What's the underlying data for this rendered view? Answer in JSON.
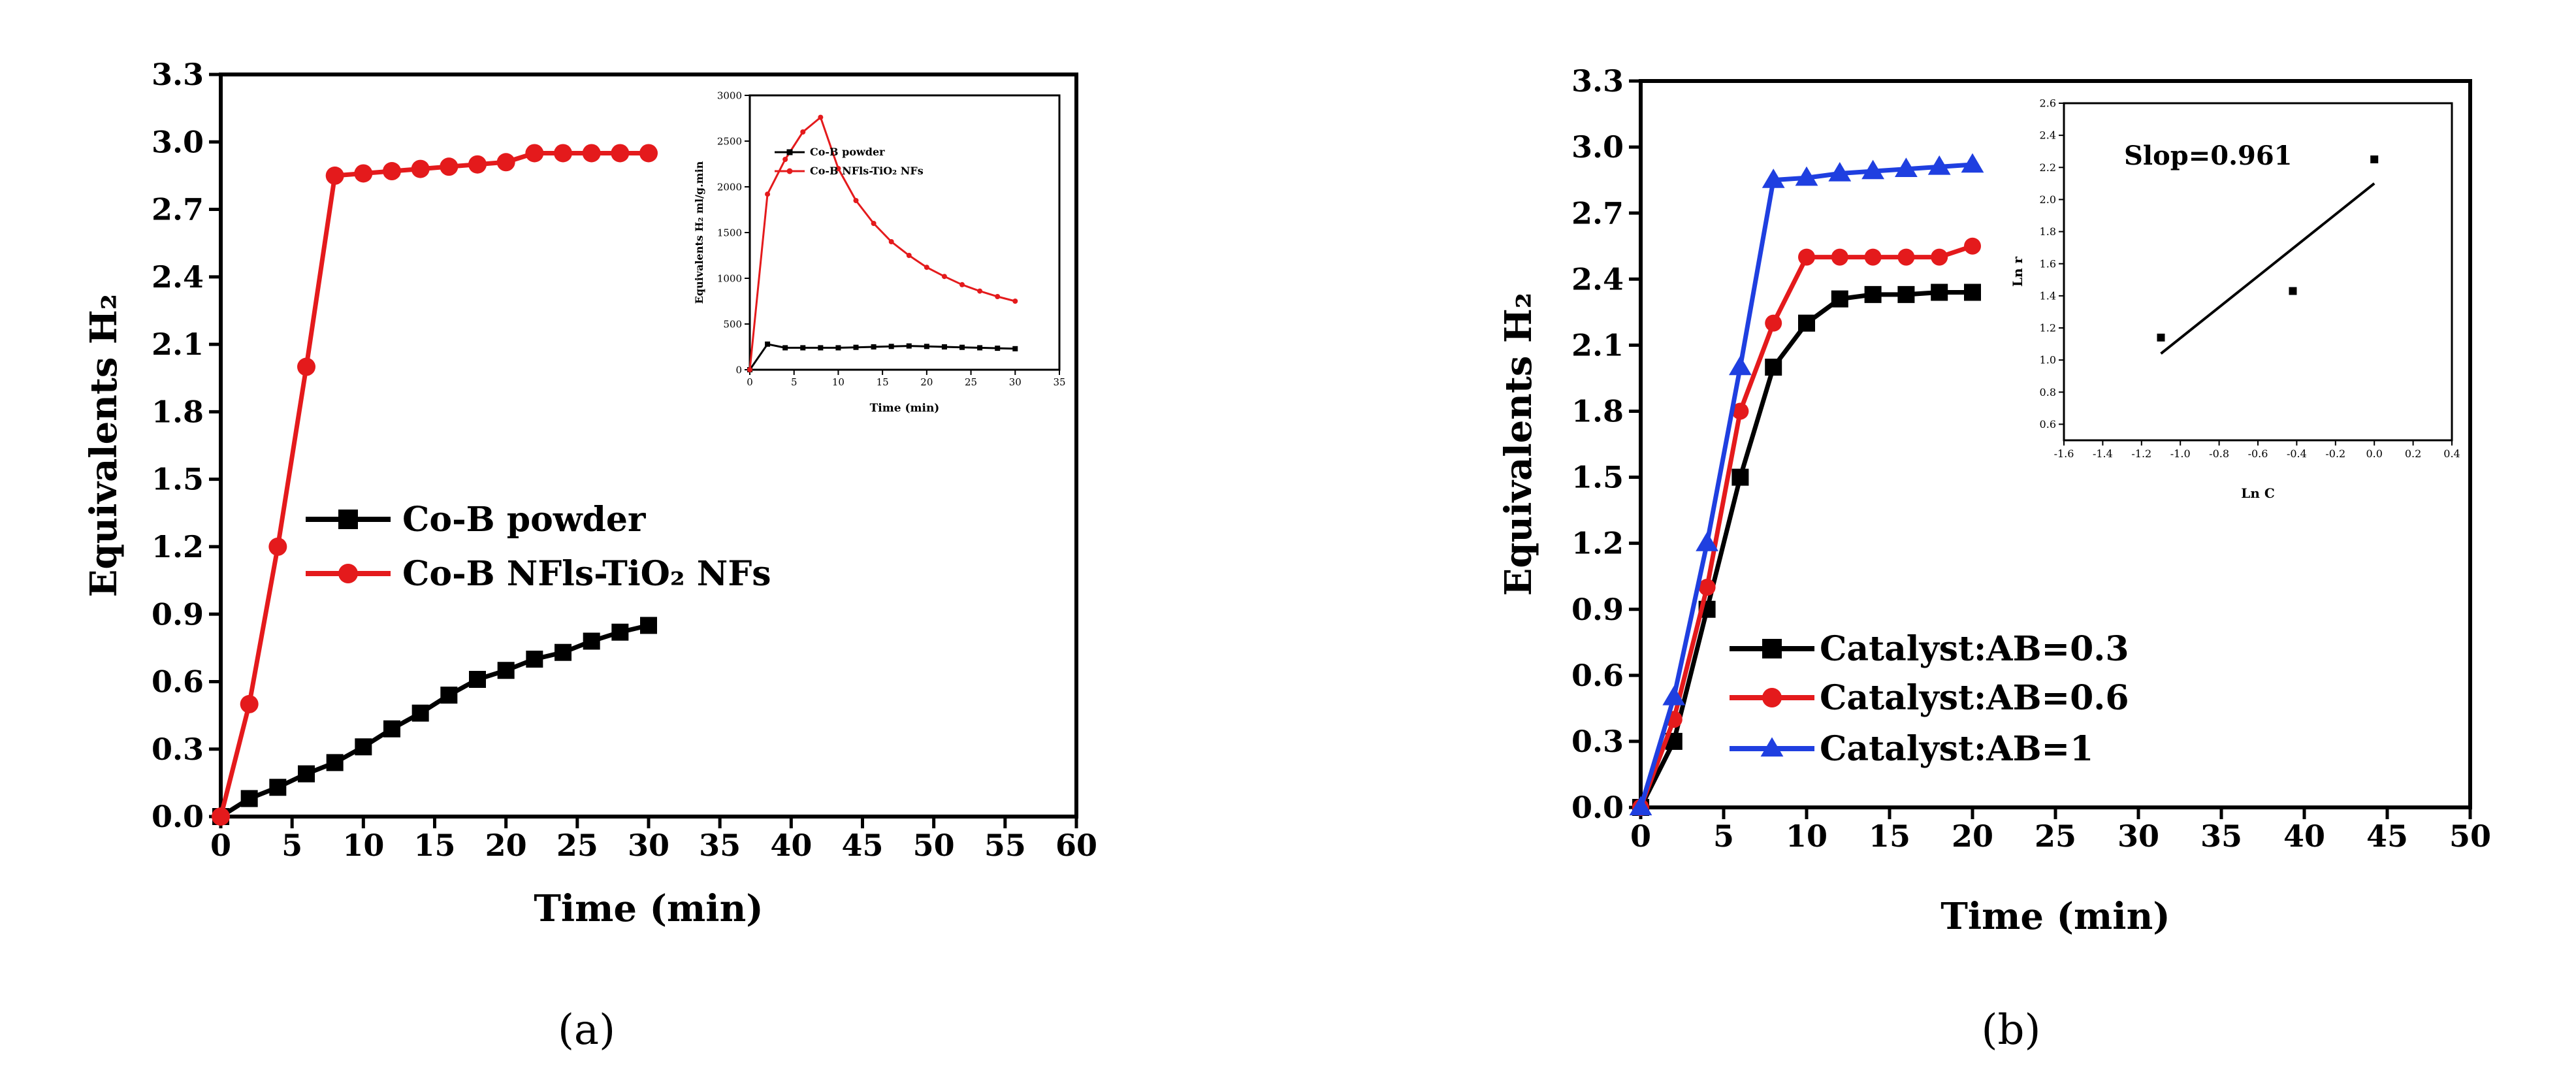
{
  "chart_data": [
    {
      "panel": "(a)",
      "type": "line",
      "xlabel": "Time (min)",
      "ylabel": "Equivalents H₂",
      "xlim": [
        0,
        60
      ],
      "ylim": [
        0,
        3.3
      ],
      "xticks": [
        "0",
        "5",
        "10",
        "15",
        "20",
        "25",
        "30",
        "35",
        "40",
        "45",
        "50",
        "55",
        "60"
      ],
      "yticks": [
        "0.0",
        "0.3",
        "0.6",
        "0.9",
        "1.2",
        "1.5",
        "1.8",
        "2.1",
        "2.4",
        "2.7",
        "3.0",
        "3.3"
      ],
      "legend_position": "center-left",
      "series": [
        {
          "name": "Co-B powder",
          "color": "#000000",
          "marker": "square",
          "x": [
            0,
            2,
            4,
            6,
            8,
            10,
            12,
            14,
            16,
            18,
            20,
            22,
            24,
            26,
            28,
            30
          ],
          "y": [
            0.0,
            0.08,
            0.13,
            0.19,
            0.24,
            0.31,
            0.39,
            0.46,
            0.54,
            0.61,
            0.65,
            0.7,
            0.73,
            0.78,
            0.82,
            0.85
          ]
        },
        {
          "name": "Co-B NFls-TiO₂ NFs",
          "color": "#e41a1c",
          "marker": "circle",
          "x": [
            0,
            2,
            4,
            6,
            8,
            10,
            12,
            14,
            16,
            18,
            20,
            22,
            24,
            26,
            28,
            30
          ],
          "y": [
            0.0,
            0.5,
            1.2,
            2.0,
            2.85,
            2.86,
            2.87,
            2.88,
            2.89,
            2.9,
            2.91,
            2.95,
            2.95,
            2.95,
            2.95,
            2.95
          ]
        }
      ],
      "inset": {
        "type": "line",
        "xlabel": "Time (min)",
        "ylabel": "Equivalents H₂ ml/g.min",
        "xlim": [
          0,
          35
        ],
        "ylim": [
          0,
          3000
        ],
        "xticks": [
          "0",
          "5",
          "10",
          "15",
          "20",
          "25",
          "30",
          "35"
        ],
        "yticks": [
          "0",
          "500",
          "1000",
          "1500",
          "2000",
          "2500",
          "3000"
        ],
        "legend_position": "top-left",
        "series": [
          {
            "name": "Co-B powder",
            "color": "#000000",
            "marker": "square",
            "x": [
              0,
              2,
              4,
              6,
              8,
              10,
              12,
              14,
              16,
              18,
              20,
              22,
              24,
              26,
              28,
              30
            ],
            "y": [
              0,
              280,
              240,
              240,
              240,
              240,
              245,
              250,
              255,
              260,
              255,
              250,
              245,
              240,
              235,
              230
            ]
          },
          {
            "name": "Co-B NFls-TiO₂ NFs",
            "color": "#e41a1c",
            "marker": "dot",
            "x": [
              0,
              2,
              4,
              6,
              8,
              10,
              12,
              14,
              16,
              18,
              20,
              22,
              24,
              26,
              28,
              30
            ],
            "y": [
              0,
              1920,
              2300,
              2600,
              2760,
              2200,
              1850,
              1600,
              1400,
              1250,
              1120,
              1020,
              930,
              860,
              800,
              750
            ]
          }
        ]
      }
    },
    {
      "panel": "(b)",
      "type": "line",
      "xlabel": "Time (min)",
      "ylabel": "Equivalents H₂",
      "xlim": [
        0,
        50
      ],
      "ylim": [
        0,
        3.3
      ],
      "xticks": [
        "0",
        "5",
        "10",
        "15",
        "20",
        "25",
        "30",
        "35",
        "40",
        "45",
        "50"
      ],
      "yticks": [
        "0.0",
        "0.3",
        "0.6",
        "0.9",
        "1.2",
        "1.5",
        "1.8",
        "2.1",
        "2.4",
        "2.7",
        "3.0",
        "3.3"
      ],
      "legend_position": "bottom-center",
      "series": [
        {
          "name": "Catalyst:AB=0.3",
          "color": "#000000",
          "marker": "square",
          "x": [
            0,
            2,
            4,
            6,
            8,
            10,
            12,
            14,
            16,
            18,
            20
          ],
          "y": [
            0.0,
            0.3,
            0.9,
            1.5,
            2.0,
            2.2,
            2.31,
            2.33,
            2.33,
            2.34,
            2.34
          ]
        },
        {
          "name": "Catalyst:AB=0.6",
          "color": "#e41a1c",
          "marker": "circle",
          "x": [
            0,
            2,
            4,
            6,
            8,
            10,
            12,
            14,
            16,
            18,
            20
          ],
          "y": [
            0.0,
            0.4,
            1.0,
            1.8,
            2.2,
            2.5,
            2.5,
            2.5,
            2.5,
            2.5,
            2.55
          ]
        },
        {
          "name": "Catalyst:AB=1",
          "color": "#1f3fe0",
          "marker": "triangle",
          "x": [
            0,
            2,
            4,
            6,
            8,
            10,
            12,
            14,
            16,
            18,
            20
          ],
          "y": [
            0.0,
            0.5,
            1.2,
            2.0,
            2.85,
            2.86,
            2.88,
            2.89,
            2.9,
            2.91,
            2.92
          ]
        }
      ],
      "inset": {
        "type": "scatter",
        "xlabel": "Ln C",
        "ylabel": "Ln r",
        "annotation": "Slop=0.961",
        "xlim": [
          -1.6,
          0.4
        ],
        "ylim": [
          0.5,
          2.6
        ],
        "xticks": [
          "-1.6",
          "-1.4",
          "-1.2",
          "-1.0",
          "-0.8",
          "-0.6",
          "-0.4",
          "-0.2",
          "0.0",
          "0.2",
          "0.4"
        ],
        "yticks": [
          "0.6",
          "0.8",
          "1.0",
          "1.2",
          "1.4",
          "1.6",
          "1.8",
          "2.0",
          "2.2",
          "2.4",
          "2.6"
        ],
        "points": {
          "x": [
            -1.1,
            -0.42,
            0.0
          ],
          "y": [
            1.14,
            1.43,
            2.25
          ]
        },
        "fit_line": {
          "x": [
            -1.1,
            0.0
          ],
          "y": [
            1.04,
            2.1
          ]
        }
      }
    }
  ],
  "labels": {
    "panel_a": "(a)",
    "panel_b": "(b)"
  }
}
